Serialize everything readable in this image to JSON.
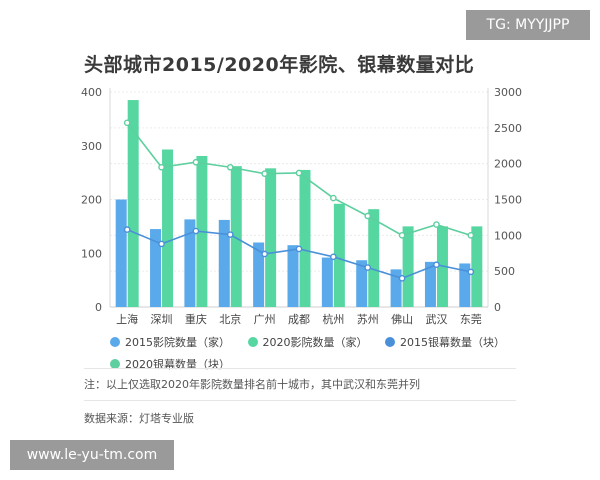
{
  "watermark_top": "TG: MYYJJPP",
  "watermark_bottom": "www.le-yu-tm.com",
  "colors": {
    "cinema_2015": "#5aa9ea",
    "cinema_2020": "#56d6a0",
    "screen_2015": "#4a90d9",
    "screen_2020": "#5ecf9f"
  },
  "note": "注：以上仅选取2020年影院数量排名前十城市，其中武汉和东莞并列",
  "source": "数据来源：灯塔专业版",
  "chart_data": {
    "type": "bar",
    "title": "头部城市2015/2020年影院、银幕数量对比",
    "categories": [
      "上海",
      "深圳",
      "重庆",
      "北京",
      "广州",
      "成都",
      "杭州",
      "苏州",
      "佛山",
      "武汉",
      "东莞"
    ],
    "series": [
      {
        "name": "2015影院数量（家）",
        "type": "bar",
        "axis": "left",
        "values": [
          200,
          145,
          163,
          162,
          120,
          115,
          92,
          87,
          70,
          84,
          81
        ]
      },
      {
        "name": "2020影院数量（家）",
        "type": "bar",
        "axis": "left",
        "values": [
          385,
          293,
          281,
          262,
          258,
          255,
          192,
          182,
          150,
          150,
          150
        ]
      },
      {
        "name": "2015银幕数量（块）",
        "type": "line",
        "axis": "right",
        "values": [
          1080,
          880,
          1060,
          1010,
          740,
          810,
          700,
          550,
          400,
          590,
          490
        ]
      },
      {
        "name": "2020银幕数量（块）",
        "type": "line",
        "axis": "right",
        "values": [
          2570,
          1950,
          2020,
          1950,
          1860,
          1870,
          1520,
          1270,
          1000,
          1150,
          1000
        ]
      }
    ],
    "left_axis": {
      "ylim": [
        0,
        400
      ],
      "ticks": [
        0,
        100,
        200,
        300,
        400
      ]
    },
    "right_axis": {
      "ylim": [
        0,
        3000
      ],
      "ticks": [
        0,
        500,
        1000,
        1500,
        2000,
        2500,
        3000
      ]
    },
    "grid": true,
    "legend_position": "bottom"
  }
}
